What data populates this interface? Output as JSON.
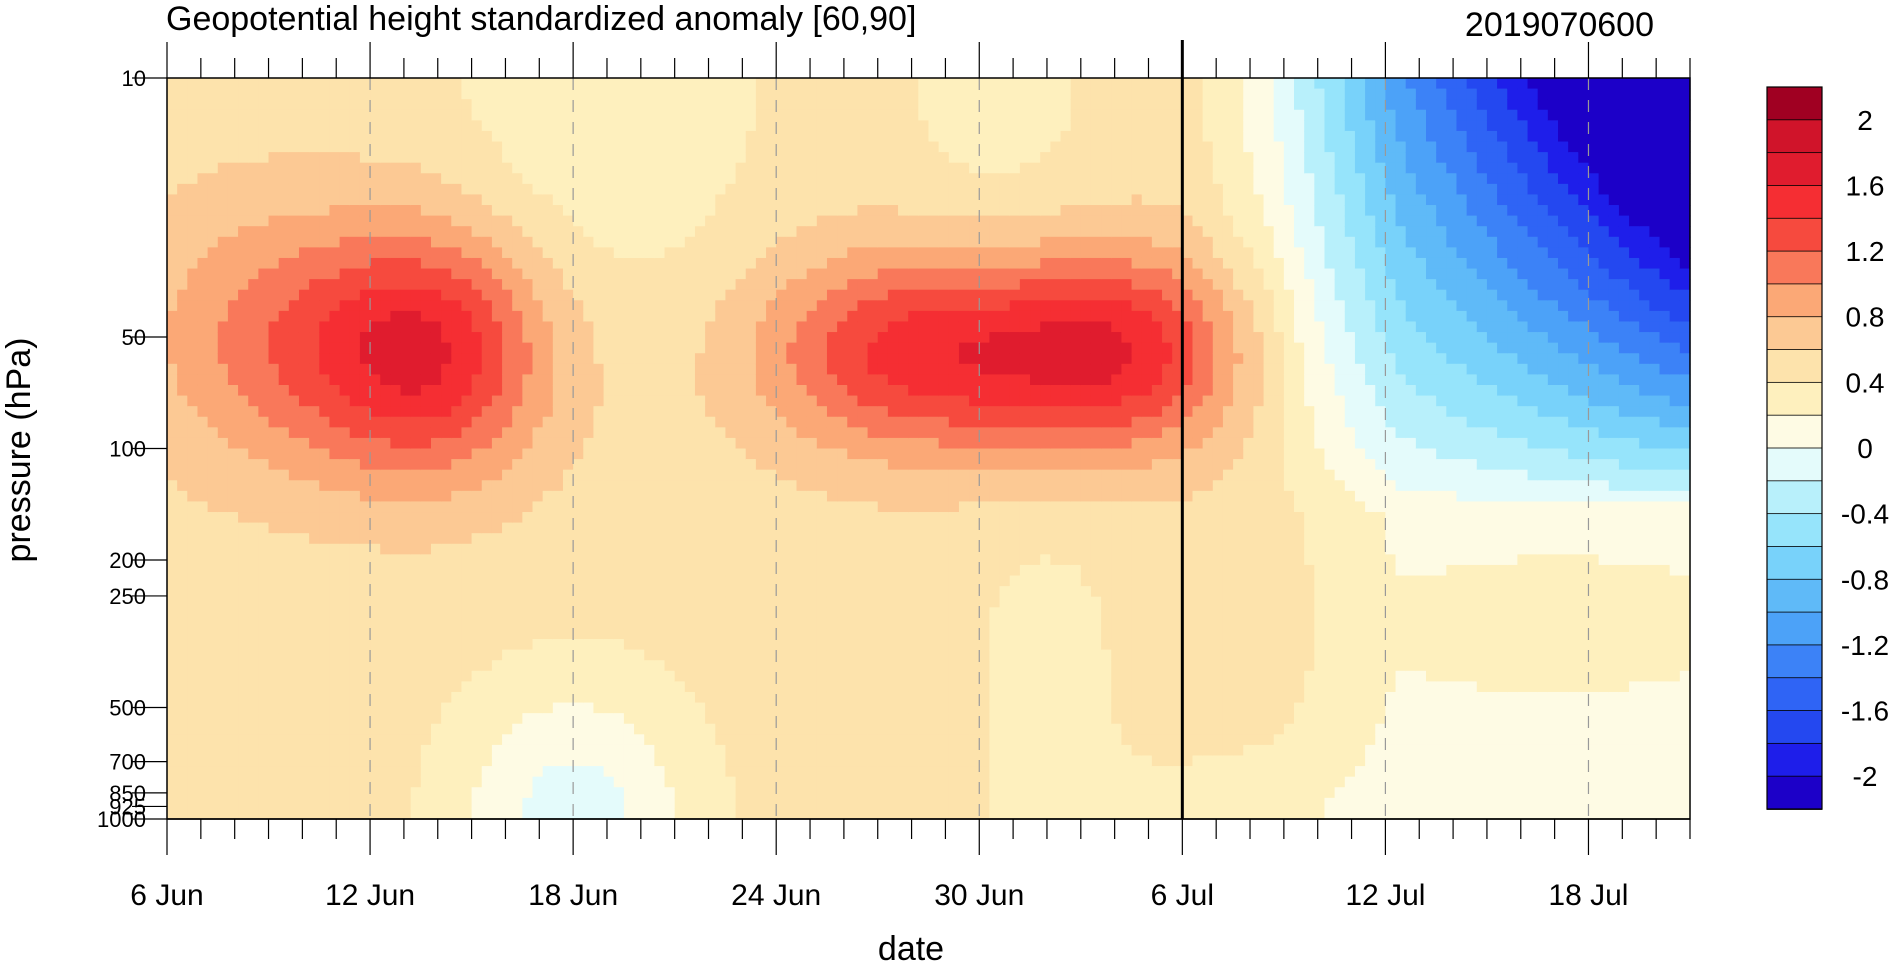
{
  "chart_data": {
    "type": "heatmap",
    "title": "Geopotential height standardized anomaly [60,90]",
    "subtitle": "2019070600",
    "xlabel": "date",
    "ylabel": "pressure (hPa)",
    "x_ticks": [
      {
        "day": 0,
        "label": "6 Jun"
      },
      {
        "day": 6,
        "label": "12 Jun"
      },
      {
        "day": 12,
        "label": "18 Jun"
      },
      {
        "day": 18,
        "label": "24 Jun"
      },
      {
        "day": 24,
        "label": "30 Jun"
      },
      {
        "day": 30,
        "label": "6 Jul"
      },
      {
        "day": 36,
        "label": "12 Jul"
      },
      {
        "day": 42,
        "label": "18 Jul"
      }
    ],
    "x_range_days": [
      0,
      45
    ],
    "pressure_levels": [
      10,
      50,
      100,
      200,
      250,
      500,
      700,
      850,
      925,
      1000
    ],
    "y_ticks": [
      {
        "p": 10,
        "label": "10"
      },
      {
        "p": 50,
        "label": "50"
      },
      {
        "p": 100,
        "label": "100"
      },
      {
        "p": 200,
        "label": "200"
      },
      {
        "p": 250,
        "label": "250"
      },
      {
        "p": 500,
        "label": "500"
      },
      {
        "p": 700,
        "label": "700"
      },
      {
        "p": 850,
        "label": "850"
      },
      {
        "p": 925,
        "label": "925"
      },
      {
        "p": 1000,
        "label": "1000"
      }
    ],
    "y_scale": "log",
    "analysis_line_day": 30,
    "dashed_gridlines": true,
    "colorbar": {
      "levels": [
        -2.2,
        -2.0,
        -1.8,
        -1.6,
        -1.4,
        -1.2,
        -1.0,
        -0.8,
        -0.6,
        -0.4,
        -0.2,
        0,
        0.2,
        0.4,
        0.6,
        0.8,
        1.0,
        1.2,
        1.4,
        1.6,
        1.8,
        2.0,
        2.2
      ],
      "colors": [
        "#1c00c8",
        "#1e1eea",
        "#2448f0",
        "#2f64f5",
        "#3c82f7",
        "#4ca2f8",
        "#5fbaf8",
        "#78d2fa",
        "#96e4fb",
        "#b8f0fb",
        "#e4fbfb",
        "#fefbe4",
        "#fef0be",
        "#fde3ac",
        "#fcc994",
        "#fba876",
        "#f9785a",
        "#f64a3e",
        "#f52e33",
        "#e01c2e",
        "#d0142a",
        "#a00022"
      ],
      "tick_labels": [
        {
          "v": 2.0,
          "label": "2"
        },
        {
          "v": 1.6,
          "label": "1.6"
        },
        {
          "v": 1.2,
          "label": "1.2"
        },
        {
          "v": 0.8,
          "label": "0.8"
        },
        {
          "v": 0.4,
          "label": "0.4"
        },
        {
          "v": 0.0,
          "label": "0"
        },
        {
          "v": -0.4,
          "label": "-0.4"
        },
        {
          "v": -0.8,
          "label": "-0.8"
        },
        {
          "v": -1.2,
          "label": "-1.2"
        },
        {
          "v": -1.6,
          "label": "-1.6"
        },
        {
          "v": -2.0,
          "label": "-2"
        }
      ]
    }
  }
}
